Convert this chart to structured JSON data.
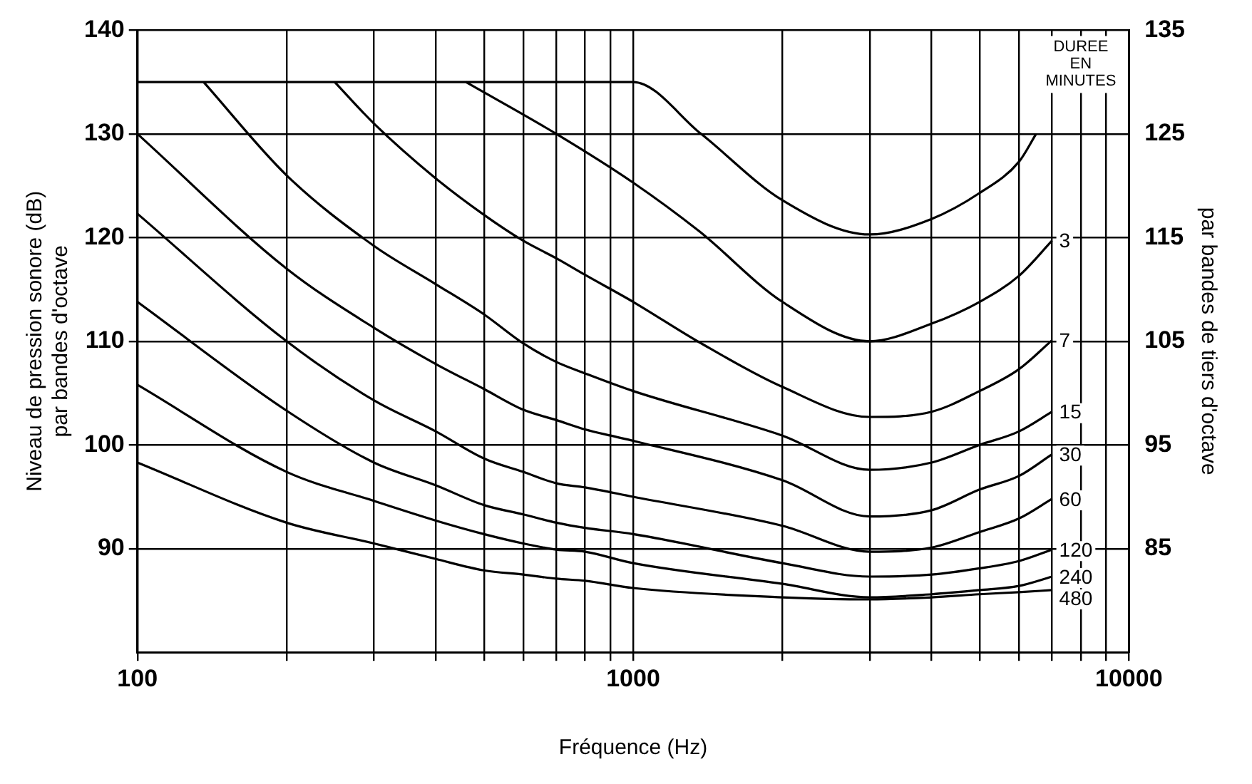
{
  "chart_data": {
    "type": "line",
    "xlabel": "Fréquence (Hz)",
    "ylabel": "Niveau de pression sonore (dB)\npar bandes d'octave",
    "y2label": "par bandes de tiers d'octave",
    "legend_title": "DUREE EN MINUTES",
    "log": "x",
    "grid": true,
    "marker": "none",
    "line_style": "solid",
    "xlim": [
      100,
      10000
    ],
    "xticks": [
      100,
      {
        "value": 200,
        "label": null
      },
      {
        "value": 300,
        "label": null
      },
      {
        "value": 400,
        "label": null
      },
      {
        "value": 500,
        "label": null
      },
      {
        "value": 600,
        "label": null
      },
      {
        "value": 700,
        "label": null
      },
      {
        "value": 800,
        "label": null
      },
      {
        "value": 900,
        "label": null
      },
      1000,
      {
        "value": 2000,
        "label": null
      },
      {
        "value": 3000,
        "label": null
      },
      {
        "value": 4000,
        "label": null
      },
      {
        "value": 5000,
        "label": null
      },
      {
        "value": 6000,
        "label": null
      },
      {
        "value": 7000,
        "label": null
      },
      {
        "value": 8000,
        "label": null
      },
      {
        "value": 9000,
        "label": null
      },
      10000
    ],
    "ylim": [
      80,
      140
    ],
    "yticks": [
      90,
      100,
      110,
      120,
      130,
      140
    ],
    "y2lim": [
      75,
      135
    ],
    "y2ticks": [
      85,
      95,
      105,
      115,
      125,
      135
    ],
    "series": [
      {
        "color": "#000000",
        "x": [
          100,
          1000,
          1371,
          2000,
          3000,
          4000,
          5000,
          6000,
          6500
        ],
        "values": [
          135,
          135,
          130,
          123.6,
          120.3,
          121.8,
          124.3,
          127.3,
          130
        ]
      },
      {
        "name": "3",
        "color": "#000000",
        "x": [
          460,
          700,
          1000,
          1360,
          2000,
          3000,
          4000,
          5000,
          6000,
          7000
        ],
        "values": [
          135,
          130,
          125.3,
          120.6,
          113.8,
          110,
          111.7,
          113.8,
          116.3,
          119.7
        ]
      },
      {
        "name": "7",
        "color": "#000000",
        "x": [
          250,
          300,
          400,
          500,
          600,
          700,
          800,
          1000,
          1360,
          2000,
          3000,
          4000,
          5000,
          6000,
          7000
        ],
        "values": [
          135,
          131,
          125.7,
          122.2,
          119.7,
          118,
          116.4,
          113.8,
          109.9,
          105.6,
          102.7,
          103.2,
          105.2,
          107.3,
          110.1
        ]
      },
      {
        "name": "15",
        "color": "#000000",
        "x": [
          136,
          200,
          300,
          400,
          500,
          600,
          700,
          800,
          1000,
          2000,
          3000,
          4000,
          5000,
          6000,
          7000
        ],
        "values": [
          135,
          126,
          119.2,
          115.5,
          112.6,
          109.8,
          108,
          106.9,
          105.2,
          100.9,
          97.6,
          98.3,
          100,
          101.3,
          103.2
        ]
      },
      {
        "name": "30",
        "color": "#000000",
        "x": [
          100,
          200,
          300,
          400,
          500,
          600,
          700,
          800,
          900,
          1000,
          2000,
          3000,
          4000,
          5000,
          6000,
          7000
        ],
        "values": [
          130,
          117,
          111.3,
          107.8,
          105.4,
          103.4,
          102.4,
          101.5,
          100.9,
          100.4,
          96.6,
          93.1,
          93.7,
          95.7,
          97,
          99.1
        ]
      },
      {
        "name": "60",
        "color": "#000000",
        "x": [
          100,
          200,
          300,
          400,
          500,
          600,
          700,
          800,
          1000,
          2000,
          3000,
          4000,
          5000,
          6000,
          7000
        ],
        "values": [
          122.3,
          110,
          104.3,
          101.3,
          98.7,
          97.4,
          96.3,
          95.9,
          95,
          92.2,
          89.7,
          90.1,
          91.6,
          92.9,
          94.8
        ]
      },
      {
        "name": "120",
        "color": "#000000",
        "x": [
          100,
          200,
          300,
          400,
          500,
          600,
          700,
          800,
          1000,
          2000,
          3000,
          4000,
          5000,
          6000,
          7000
        ],
        "values": [
          113.8,
          103.3,
          98.3,
          96.1,
          94.2,
          93.3,
          92.5,
          92,
          91.4,
          88.6,
          87.3,
          87.5,
          88.1,
          88.8,
          89.9
        ]
      },
      {
        "name": "240",
        "color": "#000000",
        "x": [
          100,
          200,
          300,
          400,
          500,
          600,
          700,
          800,
          1000,
          2000,
          3000,
          4000,
          5000,
          6000,
          7000
        ],
        "values": [
          105.8,
          97.4,
          94.6,
          92.7,
          91.4,
          90.5,
          89.9,
          89.7,
          88.6,
          86.6,
          85.3,
          85.6,
          86,
          86.4,
          87.3
        ]
      },
      {
        "name": "480",
        "color": "#000000",
        "x": [
          100,
          200,
          300,
          400,
          500,
          600,
          700,
          800,
          1000,
          2000,
          3000,
          4000,
          5000,
          6000,
          7000
        ],
        "values": [
          98.3,
          92.5,
          90.5,
          89,
          87.9,
          87.5,
          87.1,
          86.9,
          86.2,
          85.3,
          85.1,
          85.3,
          85.6,
          85.8,
          86
        ]
      }
    ]
  }
}
